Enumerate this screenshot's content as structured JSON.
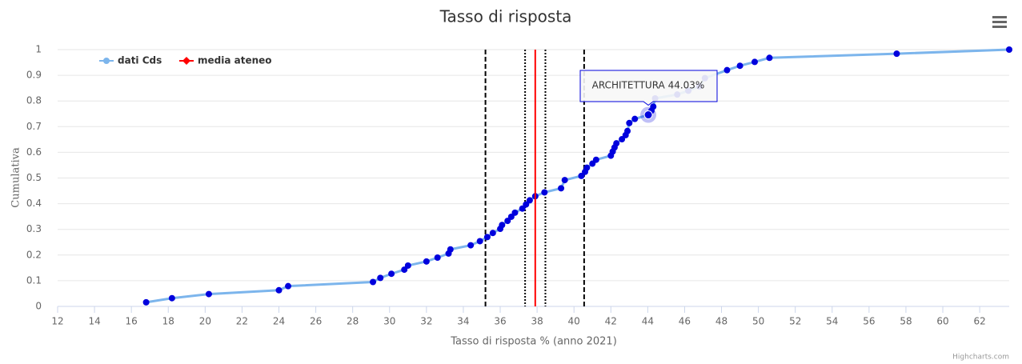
{
  "chart_data": {
    "type": "line",
    "title": "Tasso di risposta",
    "x_label": "Tasso di risposta % (anno 2021)",
    "y_label": "Cumulativa",
    "credit": "Highcharts.com",
    "tooltip": "ARCHITETTURA 44.03%",
    "xlim": [
      12,
      63.6
    ],
    "ylim": [
      0,
      1
    ],
    "xticks": [
      12,
      14,
      16,
      18,
      20,
      22,
      24,
      26,
      28,
      30,
      32,
      34,
      36,
      38,
      40,
      42,
      44,
      46,
      48,
      50,
      52,
      54,
      56,
      58,
      60,
      62
    ],
    "yticks": [
      0,
      0.1,
      0.2,
      0.3,
      0.4,
      0.5,
      0.6,
      0.7,
      0.8,
      0.9,
      1
    ],
    "grid": true,
    "legend": "top-left",
    "series": [
      {
        "name": "dati Cds",
        "color": "#7cb5ec",
        "marker_color": "#0000dd",
        "x": [
          16.8,
          18.2,
          20.2,
          24.0,
          24.5,
          29.1,
          29.5,
          30.1,
          30.8,
          31.0,
          32.0,
          32.6,
          33.2,
          33.3,
          34.4,
          34.9,
          35.3,
          35.6,
          36.0,
          36.1,
          36.4,
          36.6,
          36.8,
          37.2,
          37.4,
          37.6,
          37.9,
          38.4,
          39.3,
          39.5,
          40.4,
          40.6,
          40.7,
          41.0,
          41.2,
          42.0,
          42.1,
          42.2,
          42.3,
          42.6,
          42.8,
          42.9,
          43.0,
          43.3,
          44.03,
          44.2,
          44.3,
          44.4,
          45.6,
          46.2,
          46.8,
          47.1,
          48.3,
          49.0,
          49.8,
          50.6,
          57.5,
          63.6
        ],
        "values": [
          0.016,
          0.032,
          0.048,
          0.063,
          0.079,
          0.095,
          0.111,
          0.127,
          0.143,
          0.159,
          0.175,
          0.19,
          0.206,
          0.222,
          0.238,
          0.254,
          0.27,
          0.286,
          0.302,
          0.317,
          0.333,
          0.349,
          0.365,
          0.381,
          0.397,
          0.413,
          0.429,
          0.444,
          0.46,
          0.492,
          0.508,
          0.524,
          0.54,
          0.556,
          0.571,
          0.587,
          0.603,
          0.619,
          0.635,
          0.651,
          0.667,
          0.683,
          0.714,
          0.73,
          0.746,
          0.762,
          0.778,
          0.81,
          0.825,
          0.84,
          0.857,
          0.889,
          0.92,
          0.937,
          0.952,
          0.968,
          0.984,
          1.0
        ]
      },
      {
        "name": "media ateneo",
        "color": "#ff0000",
        "x": [
          37.9,
          37.9
        ],
        "values": [
          0,
          1
        ]
      }
    ],
    "plot_lines": [
      {
        "value": 35.2,
        "dash": "dashed"
      },
      {
        "value": 37.35,
        "dash": "dotted"
      },
      {
        "value": 38.45,
        "dash": "dotted"
      },
      {
        "value": 40.55,
        "dash": "dashed"
      }
    ]
  }
}
